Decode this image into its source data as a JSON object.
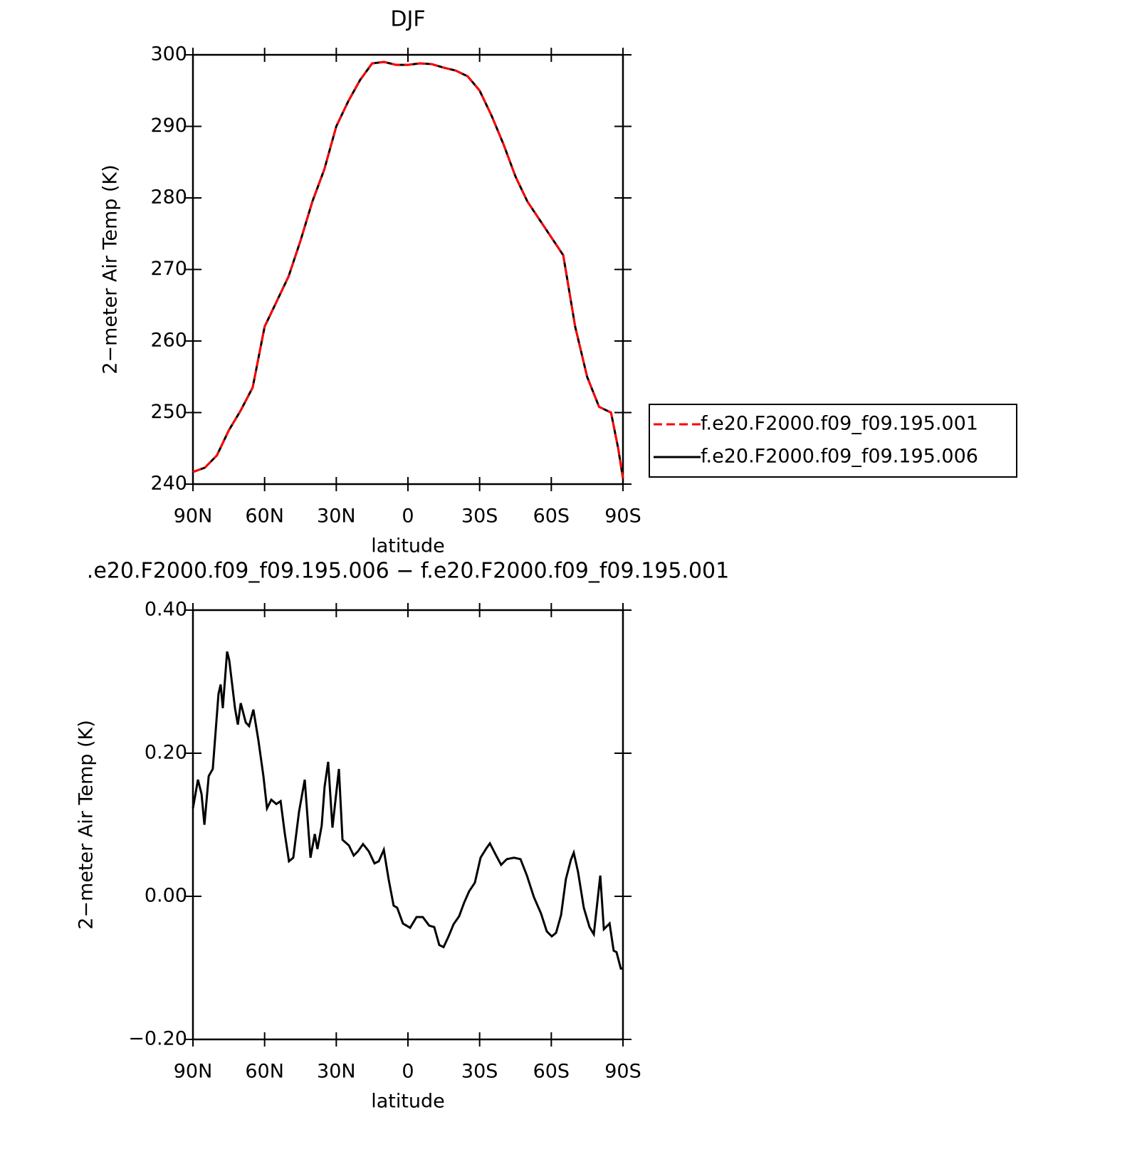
{
  "chart_data": [
    {
      "type": "line",
      "title": "DJF",
      "xlabel": "latitude",
      "ylabel": "2−meter Air Temp (K)",
      "x": [
        90,
        85,
        80,
        75,
        70,
        65,
        60,
        55,
        50,
        45,
        40,
        35,
        30,
        25,
        20,
        15,
        10,
        5,
        0,
        -5,
        -10,
        -15,
        -20,
        -25,
        -30,
        -35,
        -40,
        -45,
        -50,
        -55,
        -60,
        -65,
        -70,
        -75,
        -80,
        -85,
        -88,
        -90
      ],
      "series": [
        {
          "name": "f.e20.F2000.f09_f09.195.001",
          "color": "#ff0000",
          "dashed": true,
          "values": [
            241.7,
            242.3,
            244,
            247.5,
            250.3,
            253.5,
            262,
            265.5,
            269,
            274,
            279.5,
            284,
            290,
            293.5,
            296.5,
            298.8,
            299,
            298.6,
            298.6,
            298.8,
            298.7,
            298.2,
            297.8,
            297,
            295,
            291.5,
            287.5,
            283,
            279.5,
            277,
            274.5,
            272,
            262,
            255,
            250.8,
            250,
            245,
            240.8
          ]
        },
        {
          "name": "f.e20.F2000.f09_f09.195.006",
          "color": "#000000",
          "dashed": false,
          "values": [
            241.7,
            242.3,
            244,
            247.5,
            250.3,
            253.5,
            262,
            265.5,
            269,
            274,
            279.5,
            284,
            290,
            293.5,
            296.5,
            298.8,
            299,
            298.6,
            298.6,
            298.8,
            298.7,
            298.2,
            297.8,
            297,
            295,
            291.5,
            287.5,
            283,
            279.5,
            277,
            274.5,
            272,
            262,
            255,
            250.8,
            250,
            245,
            240.8
          ]
        }
      ],
      "xlim": [
        90,
        -90
      ],
      "xticks": [
        {
          "value": 90,
          "label": "90N"
        },
        {
          "value": 60,
          "label": "60N"
        },
        {
          "value": 30,
          "label": "30N"
        },
        0,
        {
          "value": -30,
          "label": "30S"
        },
        {
          "value": -60,
          "label": "60S"
        },
        {
          "value": -90,
          "label": "90S"
        }
      ],
      "ylim": [
        240,
        300
      ],
      "yticks": [
        240,
        250,
        260,
        270,
        280,
        290,
        300
      ],
      "legend": "right"
    },
    {
      "type": "line",
      "title": ".e20.F2000.f09_f09.195.006 − f.e20.F2000.f09_f09.195.001",
      "xlabel": "latitude",
      "ylabel": "2−meter Air Temp (K)",
      "x": [
        90,
        87.9,
        86.4,
        85.2,
        83.4,
        81.7,
        79.3,
        78.4,
        77.5,
        75.7,
        74.8,
        72.4,
        71.2,
        70,
        67.9,
        66.5,
        64.7,
        62.6,
        60.5,
        59,
        57.2,
        55.1,
        53.3,
        51.6,
        49.8,
        48,
        45.6,
        43.2,
        40.8,
        39,
        37.9,
        36.1,
        34.9,
        33.4,
        31.6,
        28.9,
        27.4,
        24.7,
        22.7,
        20.9,
        18.8,
        16.4,
        14,
        12.2,
        10.1,
        8.1,
        6,
        4.5,
        2.1,
        -0.9,
        -3.6,
        -6.2,
        -8.9,
        -11,
        -13.1,
        -14.9,
        -17,
        -19.1,
        -21.4,
        -23.5,
        -25.6,
        -28,
        -30.4,
        -32.8,
        -34.3,
        -36.6,
        -39,
        -41.4,
        -44.4,
        -47.1,
        -49.8,
        -52.7,
        -55.7,
        -58.1,
        -60.2,
        -62,
        -64.1,
        -66.1,
        -68.2,
        -69.4,
        -71.2,
        -73.6,
        -76,
        -77.8,
        -80.5,
        -82,
        -84.4,
        -86.1,
        -87.3,
        -89.1,
        -90
      ],
      "values": [
        0.123,
        0.163,
        0.143,
        0.1,
        0.168,
        0.178,
        0.283,
        0.296,
        0.263,
        0.342,
        0.33,
        0.263,
        0.24,
        0.27,
        0.243,
        0.238,
        0.261,
        0.218,
        0.168,
        0.123,
        0.135,
        0.129,
        0.133,
        0.089,
        0.049,
        0.054,
        0.118,
        0.163,
        0.054,
        0.087,
        0.066,
        0.099,
        0.153,
        0.188,
        0.096,
        0.178,
        0.079,
        0.071,
        0.057,
        0.063,
        0.073,
        0.063,
        0.046,
        0.049,
        0.065,
        0.024,
        -0.013,
        -0.016,
        -0.038,
        -0.044,
        -0.029,
        -0.029,
        -0.041,
        -0.043,
        -0.068,
        -0.071,
        -0.056,
        -0.039,
        -0.028,
        -0.009,
        0.007,
        0.019,
        0.054,
        0.067,
        0.074,
        0.059,
        0.044,
        0.052,
        0.054,
        0.052,
        0.029,
        -0.001,
        -0.024,
        -0.049,
        -0.056,
        -0.051,
        -0.026,
        0.024,
        0.051,
        0.061,
        0.034,
        -0.016,
        -0.043,
        -0.053,
        0.029,
        -0.046,
        -0.038,
        -0.076,
        -0.078,
        -0.101,
        -0.101
      ],
      "color": "#000000",
      "xlim": [
        90,
        -90
      ],
      "xticks": [
        {
          "value": 90,
          "label": "90N"
        },
        {
          "value": 60,
          "label": "60N"
        },
        {
          "value": 30,
          "label": "30N"
        },
        0,
        {
          "value": -30,
          "label": "30S"
        },
        {
          "value": -60,
          "label": "60S"
        },
        {
          "value": -90,
          "label": "90S"
        }
      ],
      "ylim": [
        -0.2,
        0.4
      ],
      "yticks": [
        {
          "value": -0.2,
          "label": "−0.20"
        },
        {
          "value": 0,
          "label": "0.00"
        },
        {
          "value": 0.2,
          "label": "0.20"
        },
        {
          "value": 0.4,
          "label": "0.40"
        }
      ]
    }
  ]
}
